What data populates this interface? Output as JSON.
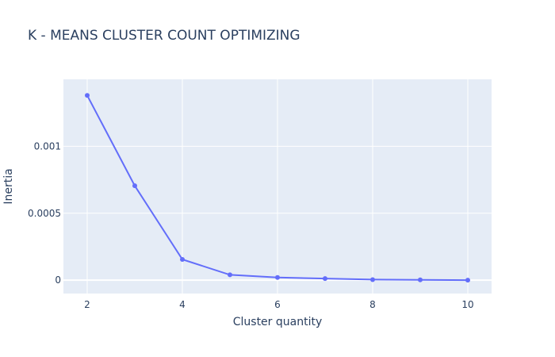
{
  "chart_data": {
    "type": "line",
    "title": "K - MEANS CLUSTER COUNT OPTIMIZING",
    "xlabel": "Cluster quantity",
    "ylabel": "Inertia",
    "x": [
      2,
      3,
      4,
      5,
      6,
      7,
      8,
      9,
      10
    ],
    "series": [
      {
        "values": [
          0.00138,
          0.000705,
          0.000155,
          4e-05,
          2e-05,
          1.2e-05,
          4e-06,
          2e-06,
          0.0
        ]
      }
    ],
    "xlim": [
      1.5,
      10.5
    ],
    "ylim": [
      -0.0001,
      0.0015
    ],
    "xticks": [
      2,
      4,
      6,
      8,
      10
    ],
    "xtick_labels": [
      "2",
      "4",
      "6",
      "8",
      "10"
    ],
    "yticks": [
      0,
      0.0005,
      0.001
    ],
    "ytick_labels": [
      "0",
      "0.0005",
      "0.001"
    ],
    "grid": true,
    "colors": {
      "line": "#636efa",
      "plot_bg": "#e5ecf6",
      "grid": "#ffffff",
      "text": "#2a3f5f"
    }
  }
}
